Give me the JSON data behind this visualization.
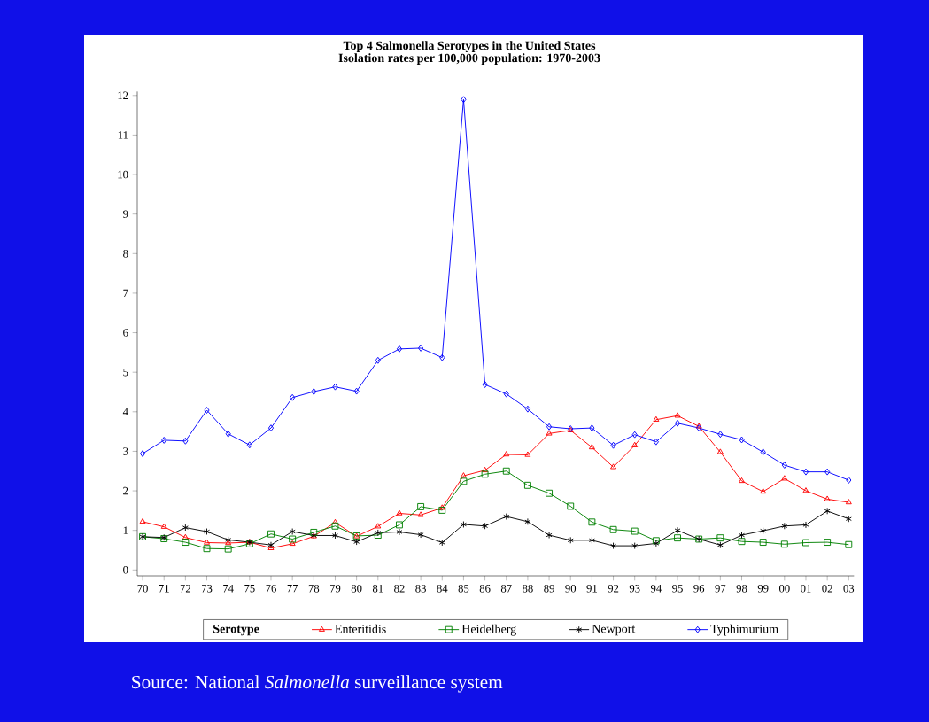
{
  "chart_data": {
    "type": "line",
    "title": "Top 4 Salmonella Serotypes in the United States",
    "subtitle": "Isolation rates per 100,000 population: 1970-2003",
    "categories": [
      "70",
      "71",
      "72",
      "73",
      "74",
      "75",
      "76",
      "77",
      "78",
      "79",
      "80",
      "81",
      "82",
      "83",
      "84",
      "85",
      "86",
      "87",
      "88",
      "89",
      "90",
      "91",
      "92",
      "93",
      "94",
      "95",
      "96",
      "97",
      "98",
      "99",
      "00",
      "01",
      "02",
      "03"
    ],
    "ylim": [
      -0.15,
      12.1
    ],
    "yticks": [
      0,
      1,
      2,
      3,
      4,
      5,
      6,
      7,
      8,
      9,
      10,
      11,
      12
    ],
    "grid": false,
    "legend": "bottom",
    "legend_title": "Serotype",
    "series": [
      {
        "name": "Enteritidis",
        "color": "#ff0000",
        "marker": "triangle",
        "values": [
          1.22,
          1.09,
          0.82,
          0.69,
          0.68,
          0.7,
          0.55,
          0.66,
          0.85,
          1.2,
          0.85,
          1.1,
          1.43,
          1.39,
          1.57,
          2.38,
          2.52,
          2.92,
          2.91,
          3.45,
          3.53,
          3.1,
          2.6,
          3.15,
          3.8,
          3.9,
          3.63,
          2.98,
          2.25,
          1.98,
          2.31,
          2.0,
          1.79,
          1.71
        ]
      },
      {
        "name": "Heidelberg",
        "color": "#008000",
        "marker": "square",
        "values": [
          0.84,
          0.79,
          0.7,
          0.54,
          0.53,
          0.66,
          0.91,
          0.78,
          0.95,
          1.11,
          0.86,
          0.88,
          1.14,
          1.6,
          1.51,
          2.24,
          2.42,
          2.5,
          2.14,
          1.94,
          1.61,
          1.21,
          1.02,
          0.98,
          0.74,
          0.81,
          0.78,
          0.81,
          0.72,
          0.7,
          0.65,
          0.69,
          0.7,
          0.64
        ]
      },
      {
        "name": "Newport",
        "color": "#000000",
        "marker": "cross",
        "values": [
          0.84,
          0.82,
          1.07,
          0.97,
          0.76,
          0.7,
          0.63,
          0.97,
          0.87,
          0.87,
          0.71,
          0.94,
          0.96,
          0.89,
          0.69,
          1.15,
          1.11,
          1.35,
          1.22,
          0.88,
          0.75,
          0.75,
          0.61,
          0.61,
          0.67,
          1.0,
          0.78,
          0.63,
          0.88,
          0.99,
          1.11,
          1.14,
          1.49,
          1.29
        ]
      },
      {
        "name": "Typhimurium",
        "color": "#0000ff",
        "marker": "diamond",
        "values": [
          2.94,
          3.28,
          3.26,
          4.04,
          3.44,
          3.16,
          3.59,
          4.36,
          4.51,
          4.63,
          4.52,
          5.3,
          5.59,
          5.61,
          5.37,
          11.9,
          4.69,
          4.45,
          4.07,
          3.62,
          3.57,
          3.59,
          3.15,
          3.42,
          3.24,
          3.71,
          3.59,
          3.43,
          3.29,
          2.98,
          2.65,
          2.48,
          2.48,
          2.27
        ]
      }
    ],
    "annotations": [
      "Source:  National *Salmonella* surveillance system"
    ]
  }
}
